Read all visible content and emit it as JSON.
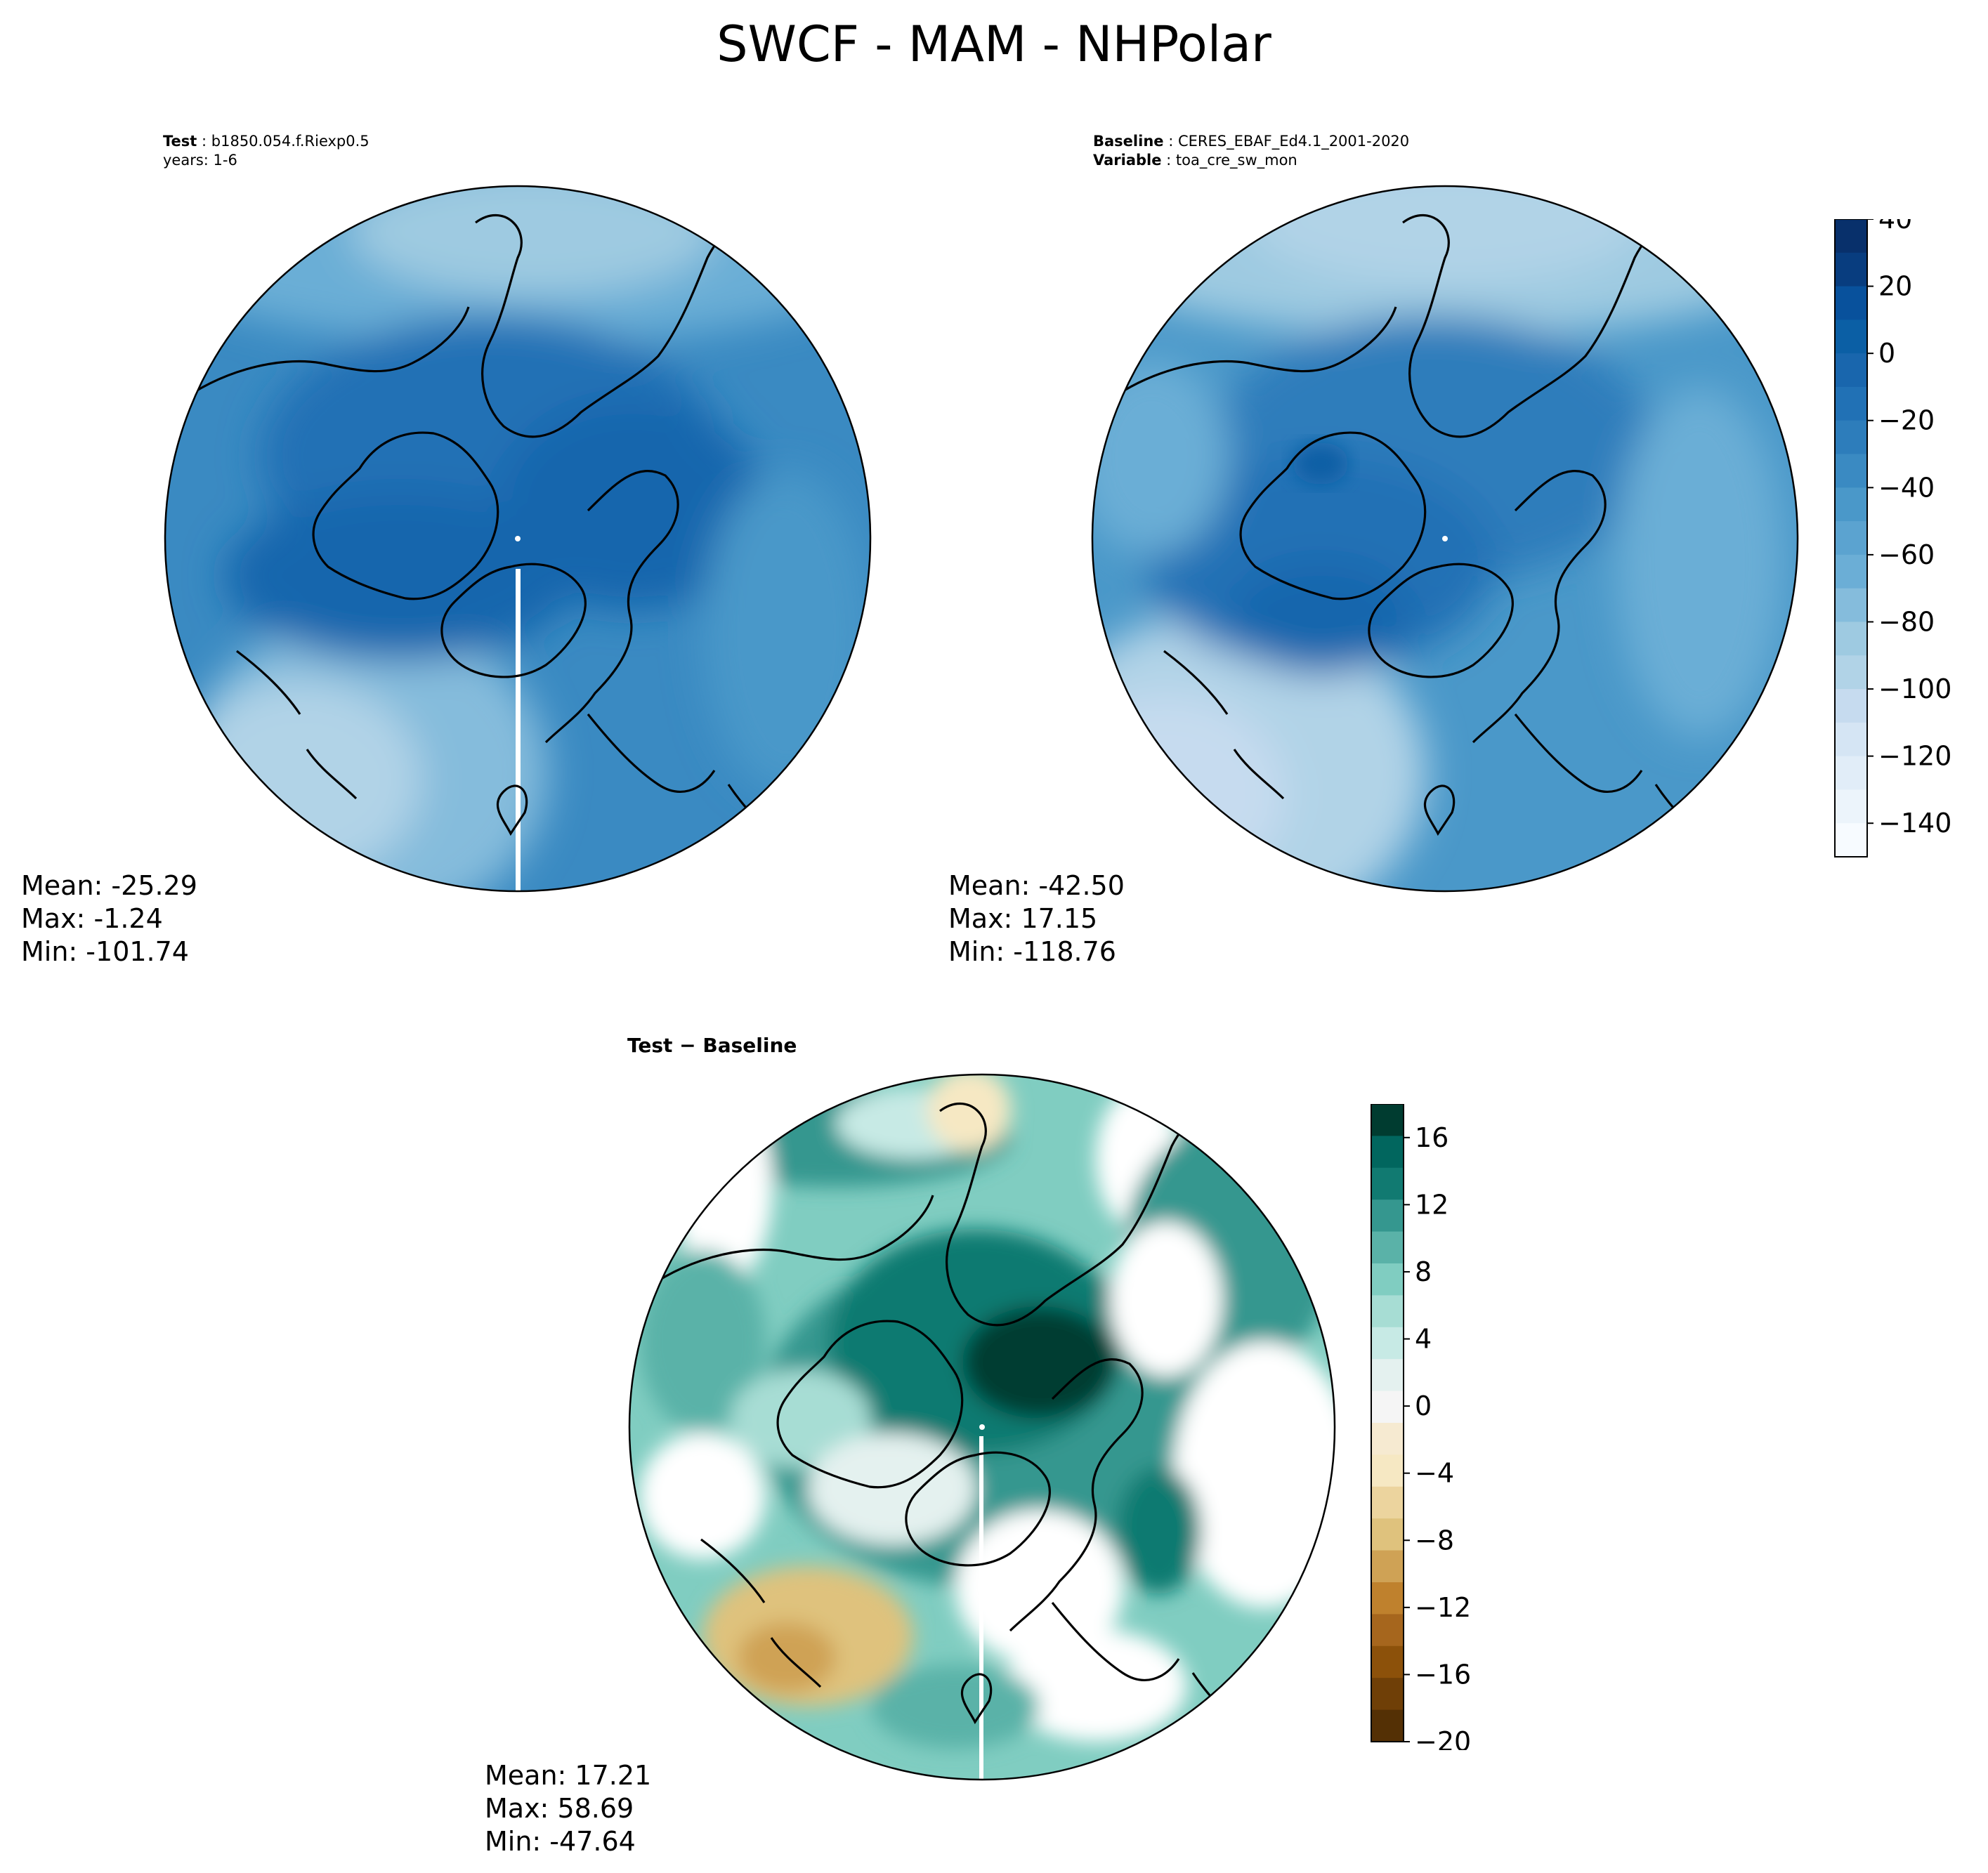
{
  "figure": {
    "title": "SWCF - MAM - NHPolar",
    "test": {
      "label": "Test",
      "name": "b1850.054.f.Riexp0.5",
      "years": "years: 1-6"
    },
    "baseline": {
      "label": "Baseline",
      "name": "CERES_EBAF_Ed4.1_2001-2020",
      "variable_label": "Variable",
      "variable": "toa_cre_sw_mon"
    },
    "diff_title": "Test − Baseline",
    "stats": {
      "test": {
        "mean": "Mean: -25.29",
        "max": "Max: -1.24",
        "min": "Min: -101.74"
      },
      "baseline": {
        "mean": "Mean: -42.50",
        "max": "Max: 17.15",
        "min": "Min: -118.76"
      },
      "diff": {
        "mean": "Mean: 17.21",
        "max": "Max: 58.69",
        "min": "Min: -47.64"
      }
    }
  },
  "chart_data": [
    {
      "type": "heatmap",
      "title": "Test",
      "projection": "north-polar-stereographic",
      "colormap": "Blues",
      "mean": -25.29,
      "max": -1.24,
      "min": -101.74
    },
    {
      "type": "heatmap",
      "title": "Baseline",
      "projection": "north-polar-stereographic",
      "colormap": "Blues",
      "mean": -42.5,
      "max": 17.15,
      "min": -118.76,
      "colorbar": {
        "range": [
          -150,
          40
        ],
        "ticks": [
          40,
          20,
          0,
          -20,
          -40,
          -60,
          -80,
          -100,
          -120,
          -140
        ],
        "tick_labels": [
          "40",
          "20",
          "0",
          "−20",
          "−40",
          "−60",
          "−80",
          "−100",
          "−120",
          "−140"
        ],
        "levels": [
          "#08306b",
          "#083d7f",
          "#08519c",
          "#0b5fa5",
          "#1966ad",
          "#2171b5",
          "#2d7dbb",
          "#3a8ac2",
          "#4a98c9",
          "#5ba3d0",
          "#6baed6",
          "#85bcdc",
          "#9ecae1",
          "#b1d3e7",
          "#c6dbef",
          "#d5e5f4",
          "#e1edf8",
          "#ecf4fb",
          "#f7fbff"
        ]
      }
    },
    {
      "type": "heatmap",
      "title": "Test − Baseline",
      "projection": "north-polar-stereographic",
      "colormap": "BrBG",
      "mean": 17.21,
      "max": 58.69,
      "min": -47.64,
      "colorbar": {
        "range": [
          -20,
          18
        ],
        "ticks": [
          16,
          12,
          8,
          4,
          0,
          -4,
          -8,
          -12,
          -16,
          -20
        ],
        "tick_labels": [
          "16",
          "12",
          "8",
          "4",
          "0",
          "−4",
          "−8",
          "−12",
          "−16",
          "−20"
        ],
        "levels": [
          "#003c30",
          "#01665e",
          "#117a71",
          "#35978f",
          "#5ab2a8",
          "#80cdc1",
          "#a7ddd4",
          "#c7eae5",
          "#e4f1ef",
          "#f5f5f5",
          "#f6ead1",
          "#f6e8c3",
          "#ecd49e",
          "#dfc27d",
          "#cfa255",
          "#bf812d",
          "#a6661d",
          "#8c510a",
          "#6f3f07",
          "#543005"
        ]
      }
    }
  ]
}
